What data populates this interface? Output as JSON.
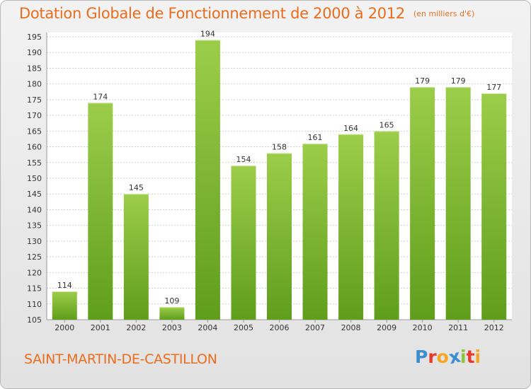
{
  "title": "Dotation Globale de Fonctionnement de 2000 à 2012",
  "subtitle": "(en milliers d'€)",
  "commune": "SAINT-MARTIN-DE-CASTILLON",
  "logo": {
    "letters": [
      "P",
      "r",
      "o",
      "x",
      "i",
      "t",
      "i"
    ],
    "colors": [
      "#3b8ed0",
      "#e8392b",
      "#f5a623",
      "#3b8ed0",
      "#8ac53e",
      "#e8392b",
      "#f5a623"
    ]
  },
  "colors": {
    "bar_light": "#9ccd4a",
    "bar_dark": "#5f9e1b",
    "accent": "#ea6d1d",
    "grid": "#d0d0d0"
  },
  "chart_data": {
    "type": "bar",
    "categories": [
      "2000",
      "2001",
      "2002",
      "2003",
      "2004",
      "2005",
      "2006",
      "2007",
      "2008",
      "2009",
      "2010",
      "2011",
      "2012"
    ],
    "values": [
      114,
      174,
      145,
      109,
      194,
      154,
      158,
      161,
      164,
      165,
      179,
      179,
      177
    ],
    "ylim": [
      105,
      195
    ],
    "yticks": [
      105,
      110,
      115,
      120,
      125,
      130,
      135,
      140,
      145,
      150,
      155,
      160,
      165,
      170,
      175,
      180,
      185,
      190,
      195
    ],
    "grid": true,
    "legend": "none"
  }
}
